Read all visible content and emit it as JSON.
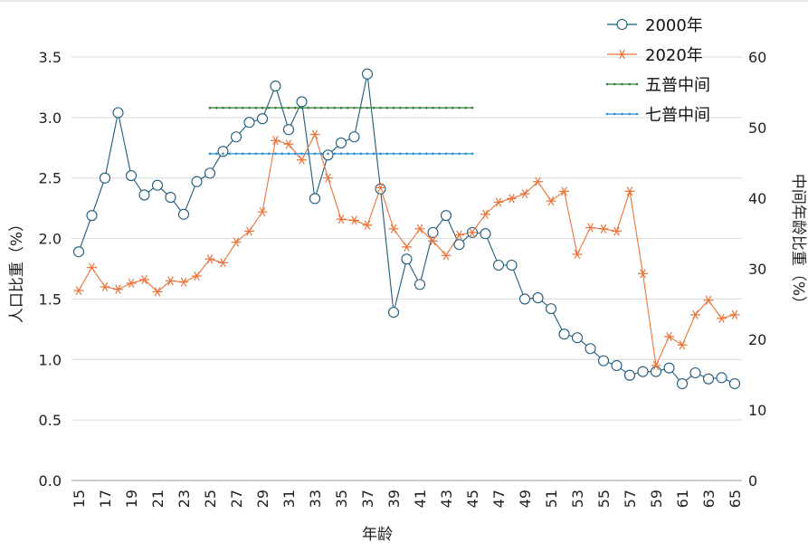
{
  "chart_data": {
    "type": "line",
    "xlabel": "年龄",
    "ylabel": "人口比重（%）",
    "y2label": "中间年龄比重（%）",
    "x": [
      15,
      16,
      17,
      18,
      19,
      20,
      21,
      22,
      23,
      24,
      25,
      26,
      27,
      28,
      29,
      30,
      31,
      32,
      33,
      34,
      35,
      36,
      37,
      38,
      39,
      40,
      41,
      42,
      43,
      44,
      45,
      46,
      47,
      48,
      49,
      50,
      51,
      52,
      53,
      54,
      55,
      56,
      57,
      58,
      59,
      60,
      61,
      62,
      63,
      64,
      65
    ],
    "xticks": [
      15,
      17,
      19,
      21,
      23,
      25,
      27,
      29,
      31,
      33,
      35,
      37,
      39,
      41,
      43,
      45,
      47,
      49,
      51,
      53,
      55,
      57,
      59,
      61,
      63,
      65
    ],
    "ylim": [
      0,
      3.5
    ],
    "yticks": [
      "0.0",
      "0.5",
      "1.0",
      "1.5",
      "2.0",
      "2.5",
      "3.0",
      "3.5"
    ],
    "y2lim": [
      0,
      60
    ],
    "y2ticks": [
      "0",
      "10",
      "20",
      "30",
      "40",
      "50",
      "60"
    ],
    "legend_position": "top-right",
    "grid": true,
    "series": [
      {
        "name": "2000年",
        "color": "#1f5a7a",
        "marker": "circle",
        "values": [
          1.89,
          2.19,
          2.5,
          3.04,
          2.52,
          2.36,
          2.44,
          2.34,
          2.2,
          2.47,
          2.54,
          2.72,
          2.84,
          2.96,
          2.99,
          3.26,
          2.9,
          3.13,
          2.33,
          2.69,
          2.79,
          2.84,
          3.36,
          2.41,
          1.39,
          1.83,
          1.62,
          2.05,
          2.19,
          1.95,
          2.05,
          2.04,
          1.78,
          1.78,
          1.5,
          1.51,
          1.42,
          1.21,
          1.18,
          1.09,
          0.99,
          0.95,
          0.87,
          0.9,
          0.9,
          0.93,
          0.8,
          0.89,
          0.84,
          0.85,
          0.8
        ]
      },
      {
        "name": "2020年",
        "color": "#e8743b",
        "marker": "asterisk",
        "values": [
          1.57,
          1.76,
          1.6,
          1.58,
          1.63,
          1.66,
          1.56,
          1.65,
          1.64,
          1.69,
          1.83,
          1.8,
          1.97,
          2.06,
          2.22,
          2.81,
          2.78,
          2.65,
          2.86,
          2.5,
          2.16,
          2.15,
          2.11,
          2.42,
          2.08,
          1.93,
          2.08,
          1.98,
          1.86,
          2.03,
          2.05,
          2.2,
          2.3,
          2.33,
          2.37,
          2.47,
          2.31,
          2.39,
          1.87,
          2.09,
          2.08,
          2.06,
          2.39,
          1.71,
          0.95,
          1.19,
          1.12,
          1.37,
          1.49,
          1.34,
          1.37
        ]
      },
      {
        "name": "五普中间",
        "color": "#2e7d32",
        "marker": "dot",
        "axis": "right",
        "x_range": [
          25,
          45
        ],
        "value": 52.8
      },
      {
        "name": "七普中间",
        "color": "#2a8fd1",
        "marker": "dot",
        "axis": "right",
        "x_range": [
          25,
          45
        ],
        "value": 46.3
      }
    ]
  }
}
